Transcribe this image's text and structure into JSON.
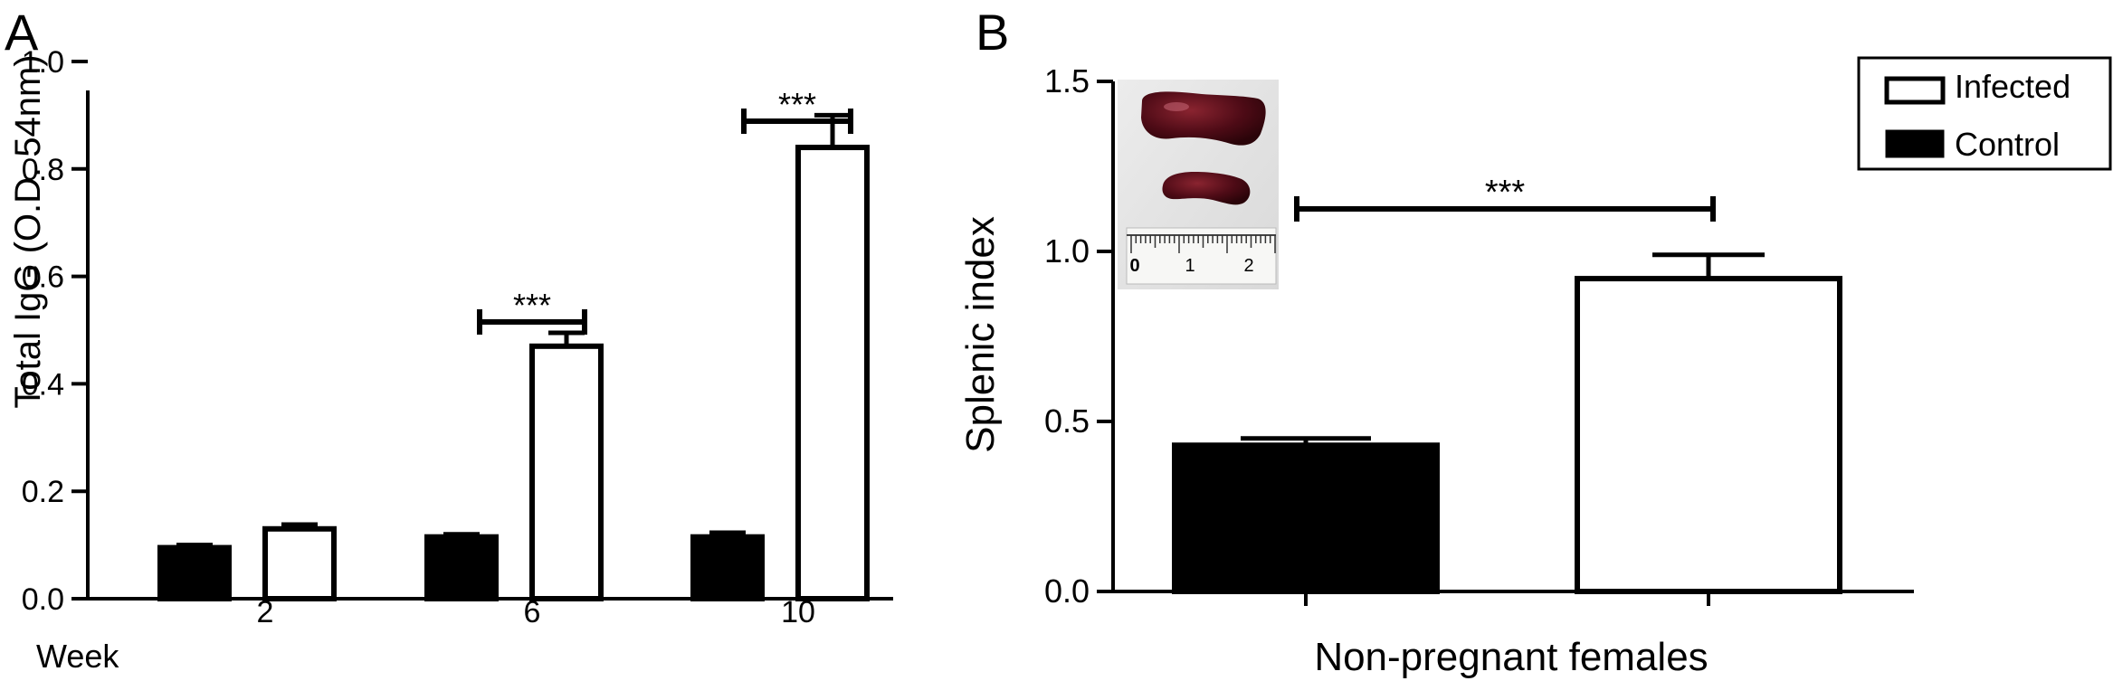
{
  "panels": {
    "a": {
      "letter": "A"
    },
    "b": {
      "letter": "B"
    }
  },
  "colors": {
    "control": "#000000",
    "infected": "#ffffff",
    "stroke": "#000000"
  },
  "inset": {
    "ruler_labels": [
      "0",
      "1",
      "2"
    ]
  },
  "chart_data": [
    {
      "type": "bar",
      "ylabel": "Total IgG (O.D. 54nm)",
      "xlabel": "Week",
      "categories": [
        "2",
        "6",
        "10"
      ],
      "ylim": [
        0,
        1.0
      ],
      "yticks": [
        "0.0",
        "0.2",
        "0.4",
        "0.6",
        "0.8",
        "1.0"
      ],
      "series": [
        {
          "name": "Control",
          "values": [
            0.095,
            0.115,
            0.115
          ],
          "errors": [
            0.005,
            0.005,
            0.008
          ]
        },
        {
          "name": "Infected",
          "values": [
            0.13,
            0.47,
            0.84
          ],
          "errors": [
            0.008,
            0.025,
            0.06
          ]
        }
      ],
      "annotations": [
        {
          "text": "***",
          "category": "6"
        },
        {
          "text": "***",
          "category": "10"
        }
      ]
    },
    {
      "type": "bar",
      "ylabel": "Splenic index",
      "xlabel": "Non-pregnant females",
      "ylim": [
        0,
        1.5
      ],
      "yticks": [
        "0.0",
        "0.5",
        "1.0",
        "1.5"
      ],
      "series": [
        {
          "name": "Control",
          "values": [
            0.43
          ],
          "errors": [
            0.02
          ]
        },
        {
          "name": "Infected",
          "values": [
            0.92
          ],
          "errors": [
            0.07
          ]
        }
      ],
      "legend": {
        "position": "top-right",
        "entries": [
          "Infected",
          "Control"
        ]
      },
      "annotations": [
        {
          "text": "***"
        }
      ]
    }
  ]
}
